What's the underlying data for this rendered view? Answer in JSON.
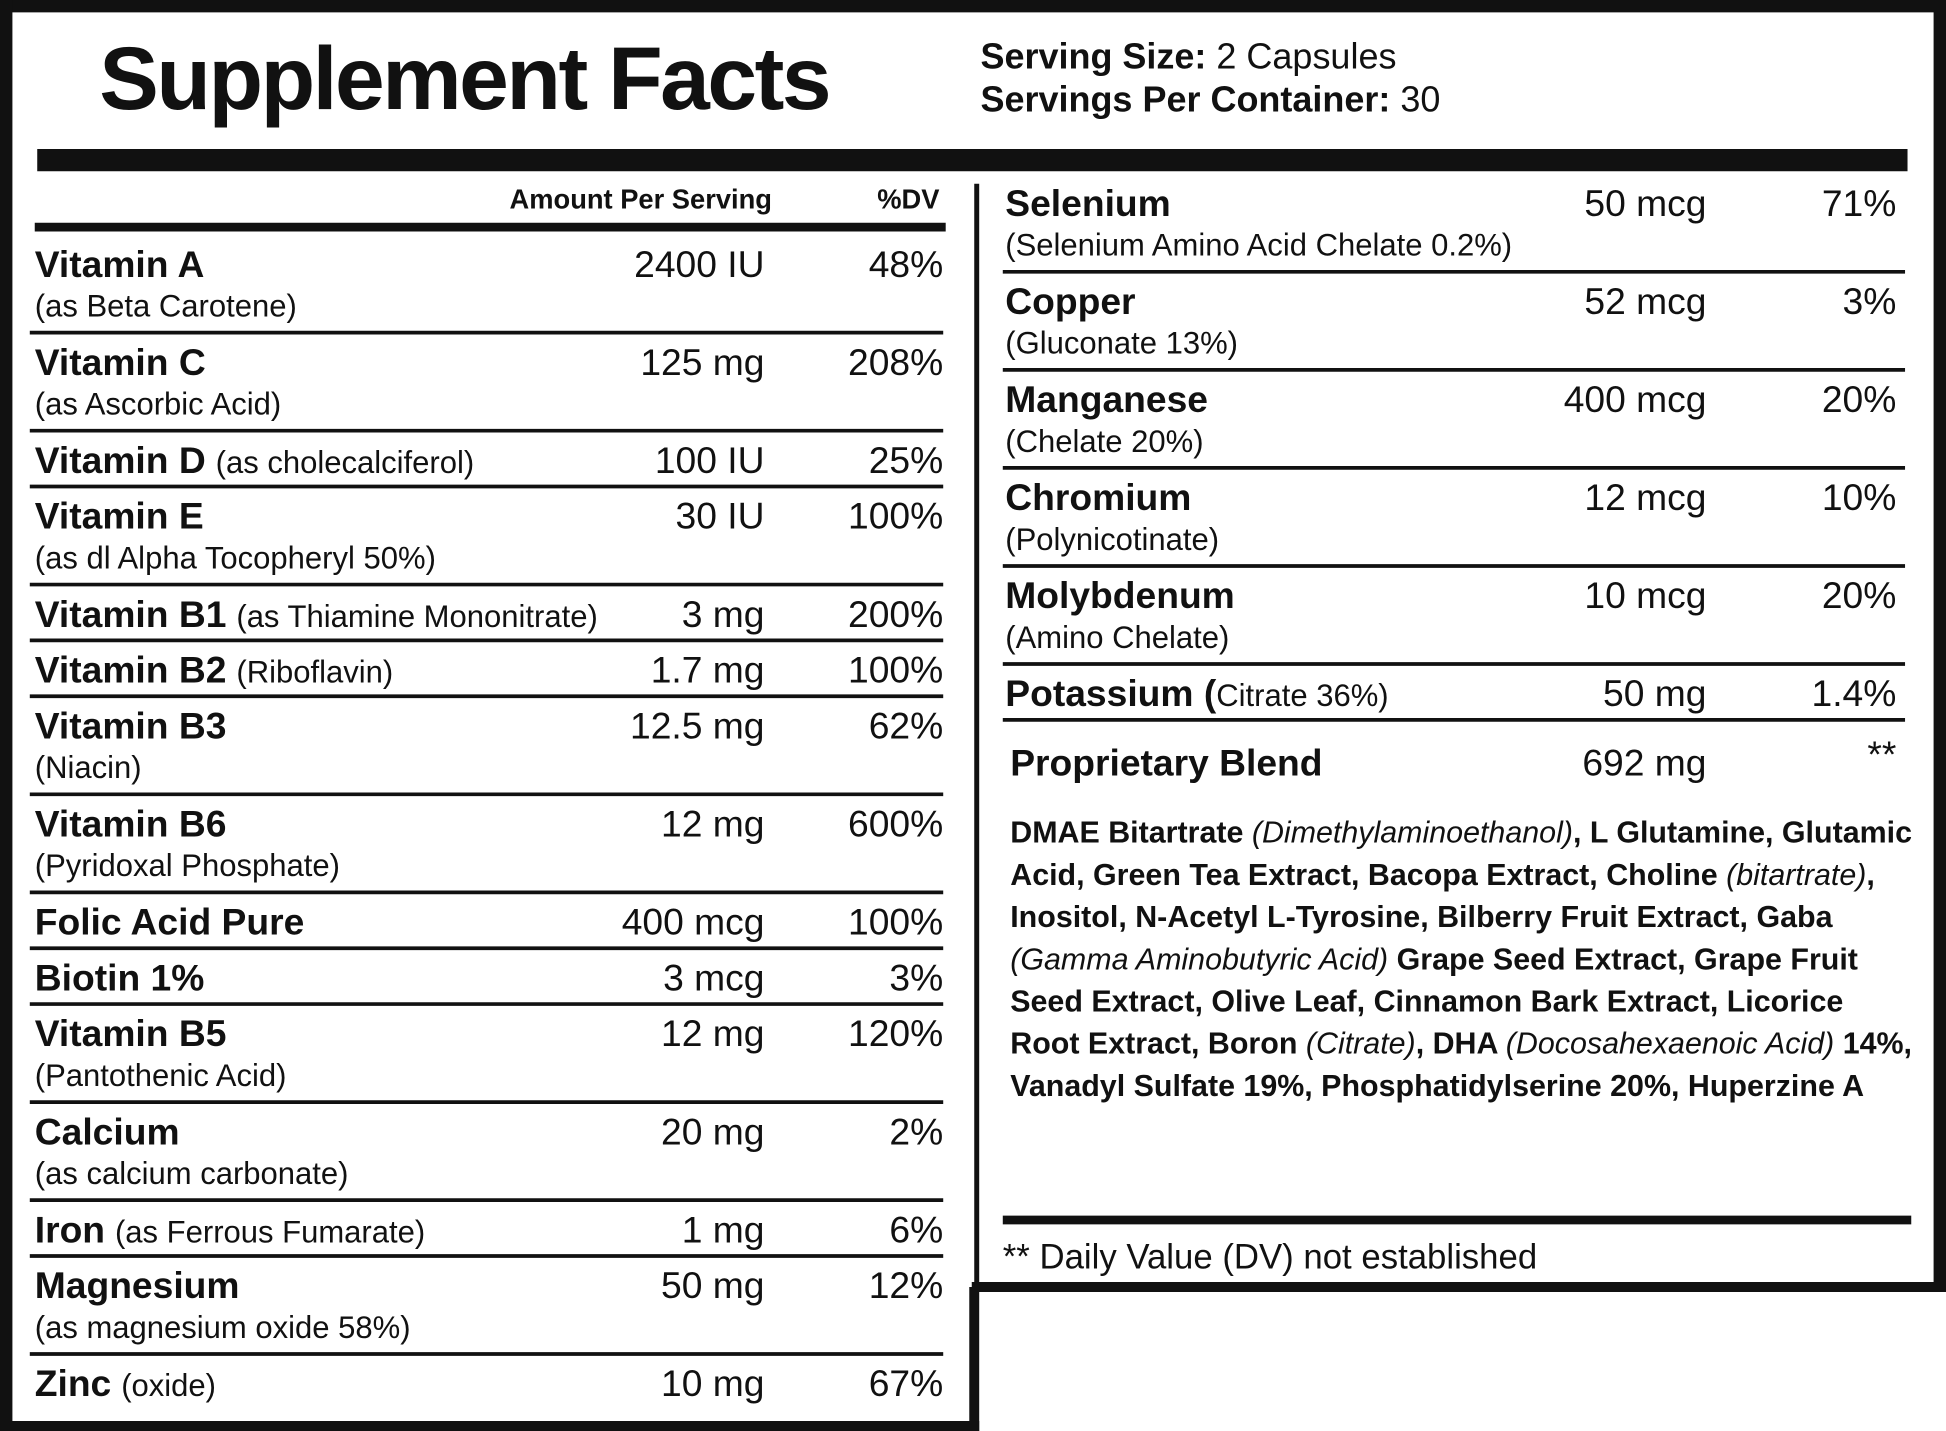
{
  "header": {
    "title": "Supplement Facts",
    "serving_size": {
      "label": "Serving Size:",
      "value": "2 Capsules"
    },
    "servings_per_container": {
      "label": "Servings Per Container:",
      "value": "30"
    }
  },
  "left": {
    "columns": [
      "Amount Per Serving",
      "%DV"
    ],
    "rows": [
      {
        "name": "Vitamin A",
        "detail": "(as Beta Carotene)",
        "amount": "2400 IU",
        "dv": "48%"
      },
      {
        "name": "Vitamin C",
        "detail": "(as Ascorbic Acid)",
        "amount": "125 mg",
        "dv": "208%"
      },
      {
        "name": "Vitamin D",
        "detail": "(as cholecalciferol)",
        "amount": "100 IU",
        "dv": "25%"
      },
      {
        "name": "Vitamin E",
        "detail": "(as dl Alpha Tocopheryl 50%)",
        "amount": "30 IU",
        "dv": "100%"
      },
      {
        "name": "Vitamin B1",
        "detail": "(as Thiamine Mononitrate)",
        "amount": "3 mg",
        "dv": "200%"
      },
      {
        "name": "Vitamin B2",
        "detail": "(Riboflavin)",
        "amount": "1.7 mg",
        "dv": "100%"
      },
      {
        "name": "Vitamin B3",
        "detail": "(Niacin)",
        "amount": "12.5 mg",
        "dv": "62%"
      },
      {
        "name": "Vitamin B6",
        "detail": "(Pyridoxal Phosphate)",
        "amount": "12 mg",
        "dv": "600%"
      },
      {
        "name": "Folic Acid Pure",
        "amount": "400 mcg",
        "dv": "100%"
      },
      {
        "name": "Biotin 1%",
        "amount": "3 mcg",
        "dv": "3%"
      },
      {
        "name": "Vitamin B5",
        "detail": "(Pantothenic Acid)",
        "amount": "12 mg",
        "dv": "120%"
      },
      {
        "name": "Calcium",
        "detail": "(as calcium carbonate)",
        "amount": "20 mg",
        "dv": "2%"
      },
      {
        "name": "Iron",
        "detail": "(as Ferrous Fumarate)",
        "amount": "1 mg",
        "dv": "6%"
      },
      {
        "name": "Magnesium",
        "detail": "(as magnesium oxide 58%)",
        "amount": "50 mg",
        "dv": "12%"
      },
      {
        "name": "Zinc",
        "detail": "(oxide)",
        "amount": "10 mg",
        "dv": "67%"
      }
    ]
  },
  "right": {
    "rows": [
      {
        "name": "Selenium",
        "detail": "(Selenium Amino Acid Chelate 0.2%)",
        "amount": "50 mcg",
        "dv": "71%"
      },
      {
        "name": "Copper",
        "detail": "(Gluconate 13%)",
        "amount": "52 mcg",
        "dv": "3%"
      },
      {
        "name": "Manganese",
        "detail": "(Chelate 20%)",
        "amount": "400 mcg",
        "dv": "20%"
      },
      {
        "name": "Chromium",
        "detail": "(Polynicotinate)",
        "amount": "12 mcg",
        "dv": "10%"
      },
      {
        "name": "Molybdenum",
        "detail": "(Amino Chelate)",
        "amount": "10 mcg",
        "dv": "20%"
      },
      {
        "name": "Potassium (",
        "detail": "Citrate 36%)",
        "amount": "50 mg",
        "dv": "1.4%"
      }
    ],
    "blend": {
      "name": "Proprietary Blend",
      "amount": "692 mg",
      "dv": "**",
      "ingredients": [
        {
          "text": "DMAE Bitartrate "
        },
        {
          "text": "(Dimethylaminoethanol)",
          "italic": true
        },
        {
          "text": ", L Glutamine, Glutamic Acid, Green Tea Extract, Bacopa Extract, Choline "
        },
        {
          "text": "(bitartrate)",
          "italic": true
        },
        {
          "text": ", Inositol, N-Acetyl L-Tyrosine, Bilberry Fruit Extract, Gaba "
        },
        {
          "text": "(Gamma Aminobutyric Acid)",
          "italic": true
        },
        {
          "text": " Grape Seed Extract, Grape Fruit Seed Extract, Olive Leaf, Cinnamon Bark Extract, Licorice Root Extract, Boron "
        },
        {
          "text": "(Citrate)",
          "italic": true
        },
        {
          "text": ", DHA "
        },
        {
          "text": "(Docosahexaenoic Acid)",
          "italic": true
        },
        {
          "text": " 14%, Vanadyl Sulfate 19%, Phosphatidylserine 20%, Huperzine A"
        }
      ]
    },
    "footnote": "** Daily Value (DV) not established"
  }
}
